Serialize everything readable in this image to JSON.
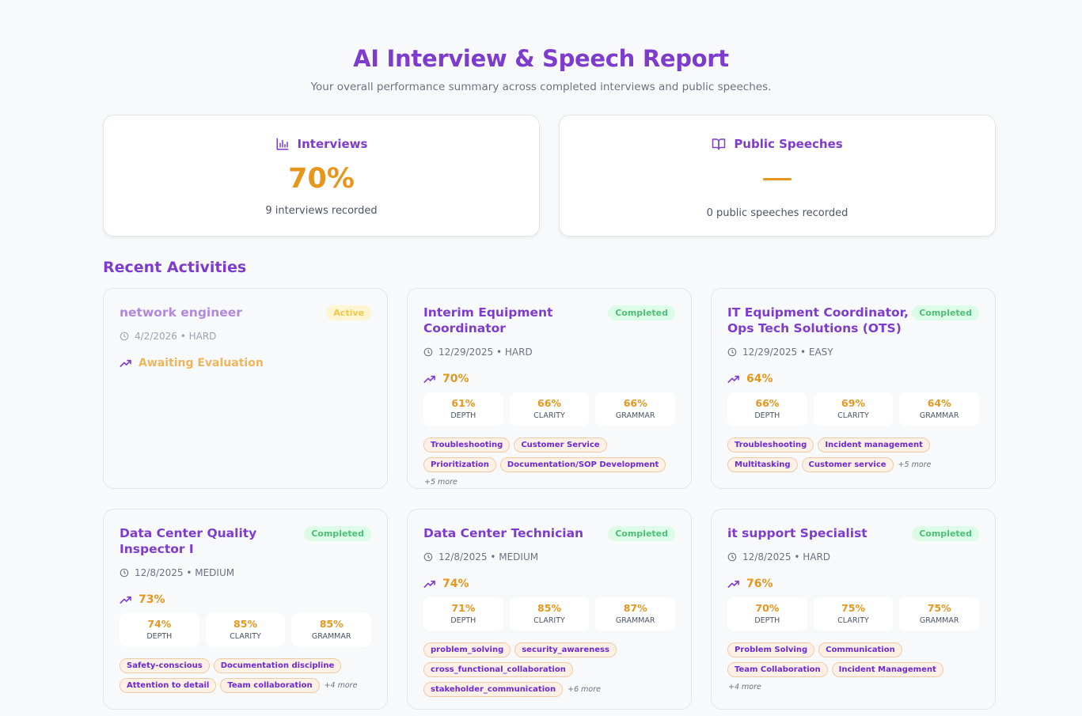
{
  "header": {
    "title": "AI Interview & Speech Report",
    "subtitle": "Your overall performance summary across completed interviews and public speeches."
  },
  "summary": [
    {
      "icon": "bar-chart-icon",
      "title": "Interviews",
      "value": "70%",
      "sub": "9 interviews recorded"
    },
    {
      "icon": "book-open-icon",
      "title": "Public Speeches",
      "value": "—",
      "sub": "0 public speeches recorded"
    }
  ],
  "section_title": "Recent Activities",
  "cards": [
    {
      "title": "network engineer",
      "status": "Active",
      "date": "4/2/2026 • HARD",
      "score": "Awaiting Evaluation",
      "pending": true,
      "metrics": [],
      "tags": [],
      "more": ""
    },
    {
      "title": "Interim Equipment Coordinator",
      "status": "Completed",
      "date": "12/29/2025 • HARD",
      "score": "70%",
      "pending": false,
      "metrics": [
        {
          "value": "61%",
          "label": "DEPTH"
        },
        {
          "value": "66%",
          "label": "CLARITY"
        },
        {
          "value": "66%",
          "label": "GRAMMAR"
        }
      ],
      "tags": [
        "Troubleshooting",
        "Customer Service",
        "Prioritization",
        "Documentation/SOP Development"
      ],
      "more": "+5 more"
    },
    {
      "title": "IT Equipment Coordinator, Ops Tech Solutions (OTS)",
      "status": "Completed",
      "date": "12/29/2025 • EASY",
      "score": "64%",
      "pending": false,
      "metrics": [
        {
          "value": "66%",
          "label": "DEPTH"
        },
        {
          "value": "69%",
          "label": "CLARITY"
        },
        {
          "value": "64%",
          "label": "GRAMMAR"
        }
      ],
      "tags": [
        "Troubleshooting",
        "Incident management",
        "Multitasking",
        "Customer service"
      ],
      "more": "+5 more"
    },
    {
      "title": "Data Center Quality Inspector I",
      "status": "Completed",
      "date": "12/8/2025 • MEDIUM",
      "score": "73%",
      "pending": false,
      "metrics": [
        {
          "value": "74%",
          "label": "DEPTH"
        },
        {
          "value": "85%",
          "label": "CLARITY"
        },
        {
          "value": "85%",
          "label": "GRAMMAR"
        }
      ],
      "tags": [
        "Safety-conscious",
        "Documentation discipline",
        "Attention to detail",
        "Team collaboration"
      ],
      "more": "+4 more"
    },
    {
      "title": "Data Center Technician",
      "status": "Completed",
      "date": "12/8/2025 • MEDIUM",
      "score": "74%",
      "pending": false,
      "metrics": [
        {
          "value": "71%",
          "label": "DEPTH"
        },
        {
          "value": "85%",
          "label": "CLARITY"
        },
        {
          "value": "87%",
          "label": "GRAMMAR"
        }
      ],
      "tags": [
        "problem_solving",
        "security_awareness",
        "cross_functional_collaboration",
        "stakeholder_communication"
      ],
      "more": "+6 more"
    },
    {
      "title": "it support Specialist",
      "status": "Completed",
      "date": "12/8/2025 • HARD",
      "score": "76%",
      "pending": false,
      "metrics": [
        {
          "value": "70%",
          "label": "DEPTH"
        },
        {
          "value": "75%",
          "label": "CLARITY"
        },
        {
          "value": "75%",
          "label": "GRAMMAR"
        }
      ],
      "tags": [
        "Problem Solving",
        "Communication",
        "Team Collaboration",
        "Incident Management"
      ],
      "more": "+4 more"
    }
  ],
  "colors": {
    "accent": "#7e3ccf",
    "score": "#e6961d",
    "completed_bg": "#dcfce7",
    "completed_text": "#4fbf7a",
    "active_bg": "#fef6d3",
    "active_text": "#f1c64a"
  }
}
